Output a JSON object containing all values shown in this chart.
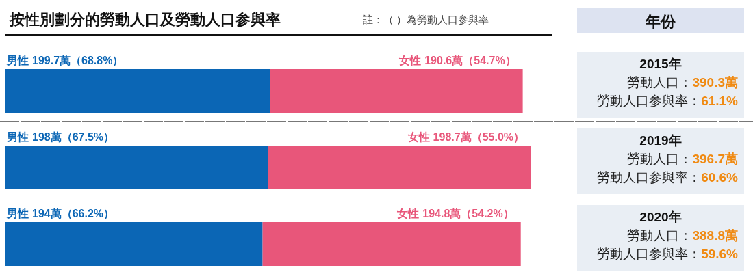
{
  "chart_data": {
    "type": "bar",
    "orientation": "horizontal",
    "stacked": true,
    "title": "按性別劃分的勞動人口及勞動人口参與率",
    "ylabel": "年份",
    "categories": [
      "2015年",
      "2019年",
      "2020年"
    ],
    "series": [
      {
        "name": "男性",
        "color": "#0b66b5",
        "values": [
          199.7,
          198,
          194
        ],
        "value_labels": [
          "199.7萬（68.8%）",
          "198萬（67.5%）",
          "194萬（66.2%）"
        ]
      },
      {
        "name": "女性",
        "color": "#e8567a",
        "values": [
          190.6,
          198.7,
          194.8
        ],
        "value_labels": [
          "190.6萬（54.7%）",
          "198.7萬（55.0%）",
          "194.8萬（54.2%）"
        ]
      }
    ],
    "annotations": [
      "註：（ ）為勞動人口参與率",
      "勞動人口：390.3萬",
      "勞動人口参與率：61.1%",
      "勞動人口：396.7萬",
      "勞動人口参與率：60.6%",
      "勞動人口：388.8萬",
      "勞動人口参與率：59.6%"
    ]
  }
}
